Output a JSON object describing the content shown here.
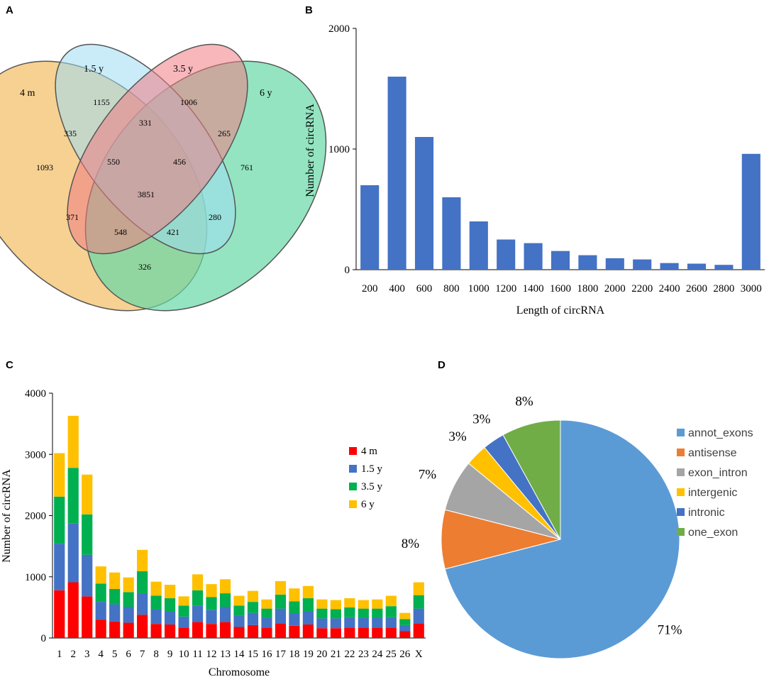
{
  "panel_letters": [
    "A",
    "B",
    "C",
    "D"
  ],
  "colors": {
    "venn_4m": "#F5C97F",
    "venn_15y": "#9EDCF2",
    "venn_35y": "#F07C84",
    "venn_6y": "#67D9A6",
    "bar_blue": "#4472C4",
    "stack_4m": "#FF0000",
    "stack_15y": "#4472C4",
    "stack_35y": "#00B050",
    "stack_6y": "#FFC000",
    "pie_annot_exons": "#5B9BD5",
    "pie_antisense": "#ED7D31",
    "pie_exon_intron": "#A5A5A5",
    "pie_intergenic": "#FFC000",
    "pie_intronic": "#4472C4",
    "pie_one_exon": "#70AD47"
  },
  "chart_data": [
    {
      "panel": "A",
      "type": "venn",
      "sets": [
        "4 m",
        "1.5 y",
        "3.5 y",
        "6 y"
      ],
      "regions": {
        "4m_only": 1093,
        "1.5y_only": 1155,
        "3.5y_only": 1006,
        "6y_only": 761,
        "4m_1.5y": 335,
        "1.5y_3.5y": 331,
        "3.5y_6y": 265,
        "4m_1.5y_3.5y": 550,
        "1.5y_3.5y_6y": 456,
        "all": 3851,
        "4m_3.5y": 371,
        "1.5y_6y": 280,
        "4m_3.5y_6y": 548,
        "4m_1.5y_6y": 421,
        "4m_6y": 326
      }
    },
    {
      "panel": "B",
      "type": "bar",
      "categories": [
        "200",
        "400",
        "600",
        "800",
        "1000",
        "1200",
        "1400",
        "1600",
        "1800",
        "2000",
        "2200",
        "2400",
        "2600",
        "2800",
        "3000"
      ],
      "values": [
        700,
        1600,
        1100,
        600,
        400,
        250,
        220,
        155,
        120,
        95,
        85,
        55,
        50,
        40,
        960
      ],
      "xlabel": "Length of circRNA",
      "ylabel": "Number of circRNA",
      "ylim": [
        0,
        2000
      ],
      "yticks": [
        "0",
        "1000",
        "2000"
      ]
    },
    {
      "panel": "C",
      "type": "stacked-bar",
      "categories": [
        "1",
        "2",
        "3",
        "4",
        "5",
        "6",
        "7",
        "8",
        "9",
        "10",
        "11",
        "12",
        "13",
        "14",
        "15",
        "16",
        "17",
        "18",
        "19",
        "20",
        "21",
        "22",
        "23",
        "24",
        "25",
        "26",
        "X"
      ],
      "series": [
        {
          "name": "4 m",
          "values": [
            780,
            910,
            680,
            300,
            270,
            250,
            380,
            230,
            220,
            170,
            260,
            230,
            260,
            180,
            210,
            170,
            240,
            200,
            220,
            160,
            160,
            170,
            170,
            170,
            170,
            110,
            240
          ]
        },
        {
          "name": "1.5 y",
          "values": [
            760,
            960,
            680,
            290,
            280,
            260,
            350,
            240,
            220,
            180,
            270,
            230,
            250,
            180,
            200,
            160,
            240,
            200,
            220,
            160,
            160,
            170,
            160,
            160,
            170,
            100,
            240
          ]
        },
        {
          "name": "3.5 y",
          "values": [
            770,
            910,
            660,
            300,
            250,
            240,
            360,
            220,
            210,
            180,
            250,
            210,
            220,
            170,
            180,
            150,
            230,
            200,
            210,
            160,
            150,
            160,
            150,
            150,
            180,
            100,
            220
          ]
        },
        {
          "name": "6 y",
          "values": [
            710,
            850,
            650,
            280,
            270,
            240,
            350,
            230,
            220,
            150,
            260,
            210,
            230,
            160,
            180,
            150,
            220,
            210,
            200,
            150,
            150,
            150,
            140,
            150,
            170,
            100,
            210
          ]
        }
      ],
      "xlabel": "Chromosome",
      "ylabel": "Number of circRNA",
      "ylim": [
        0,
        4000
      ],
      "yticks": [
        "0",
        "1000",
        "2000",
        "3000",
        "4000"
      ],
      "legend": [
        "4 m",
        "1.5 y",
        "3.5 y",
        "6 y"
      ]
    },
    {
      "panel": "D",
      "type": "pie",
      "slices": [
        {
          "label": "annot_exons",
          "value": 71,
          "text": "71%"
        },
        {
          "label": "antisense",
          "value": 8,
          "text": "8%"
        },
        {
          "label": "exon_intron",
          "value": 7,
          "text": "7%"
        },
        {
          "label": "intergenic",
          "value": 3,
          "text": "3%"
        },
        {
          "label": "intronic",
          "value": 3,
          "text": "3%"
        },
        {
          "label": "one_exon",
          "value": 8,
          "text": "8%"
        }
      ],
      "legend": [
        "annot_exons",
        "antisense",
        "exon_intron",
        "intergenic",
        "intronic",
        "one_exon"
      ]
    }
  ]
}
